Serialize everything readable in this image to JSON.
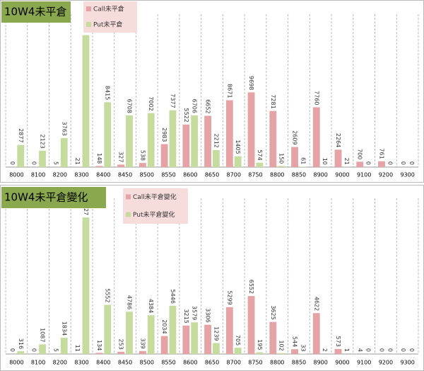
{
  "chart_data": [
    {
      "type": "bar",
      "title": "10W4未平倉",
      "categories": [
        "8000",
        "8100",
        "8200",
        "8300",
        "8400",
        "8450",
        "8500",
        "8550",
        "8600",
        "8650",
        "8700",
        "8750",
        "8800",
        "8850",
        "8900",
        "9000",
        "9100",
        "9200",
        "9300"
      ],
      "series": [
        {
          "name": "Call未平倉",
          "color": "#e6a3a6",
          "values": [
            0,
            0,
            5,
            21,
            148,
            327,
            538,
            2983,
            5522,
            6652,
            8671,
            9698,
            7281,
            2609,
            7760,
            2264,
            700,
            761,
            0
          ]
        },
        {
          "name": "Put未平倉",
          "color": "#c6dc9f",
          "values": [
            2877,
            2123,
            3763,
            17116,
            8415,
            6708,
            7002,
            7377,
            6706,
            2212,
            1405,
            574,
            150,
            61,
            10,
            21,
            0,
            0,
            0
          ]
        }
      ],
      "ylim": [
        0,
        18000
      ],
      "grid": true
    },
    {
      "type": "bar",
      "title": "10W4未平倉變化",
      "categories": [
        "8000",
        "8100",
        "8200",
        "8300",
        "8400",
        "8450",
        "8500",
        "8550",
        "8600",
        "8650",
        "8700",
        "8750",
        "8800",
        "8850",
        "8900",
        "9000",
        "9100",
        "9200",
        "9300"
      ],
      "series": [
        {
          "name": "Call未平倉變化",
          "color": "#e6a3a6",
          "values": [
            0,
            0,
            5,
            11,
            134,
            253,
            339,
            2034,
            3215,
            3306,
            5299,
            6552,
            3625,
            544,
            4622,
            573,
            4,
            0,
            0
          ]
        },
        {
          "name": "Put未平倉變化",
          "color": "#c6dc9f",
          "values": [
            316,
            1087,
            1834,
            15427,
            5552,
            4786,
            4384,
            5446,
            3579,
            1239,
            705,
            195,
            102,
            33,
            2,
            1,
            0,
            0,
            0
          ]
        }
      ],
      "ylim": [
        0,
        16000
      ],
      "grid": true
    }
  ]
}
